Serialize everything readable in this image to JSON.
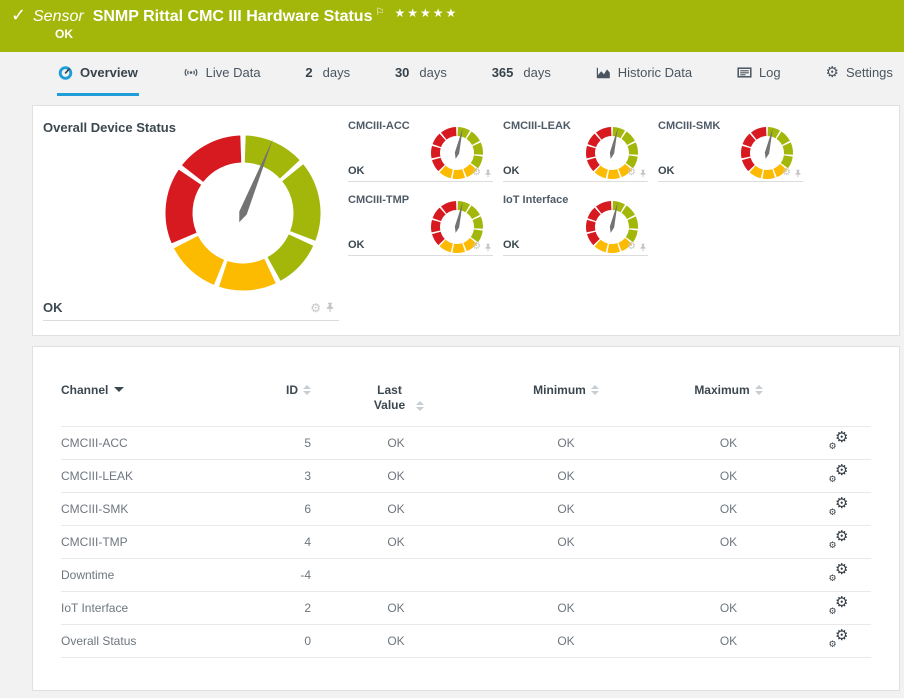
{
  "colors": {
    "header_green": "#a3b70a",
    "accent_blue": "#1e9dd8",
    "gauge_green": "#a3b70a",
    "gauge_yellow": "#fcba00",
    "gauge_red": "#d71920",
    "needle_gray": "#737373"
  },
  "header": {
    "check": "✓",
    "kind": "Sensor",
    "title": "SNMP Rittal CMC III Hardware Status",
    "flag": "⚐",
    "stars": "★★★★★",
    "status": "OK"
  },
  "tabs": [
    {
      "label": "Overview",
      "active": true
    },
    {
      "label": "Live Data"
    },
    {
      "num": "2",
      "label": "days"
    },
    {
      "num": "30",
      "label": "days"
    },
    {
      "num": "365",
      "label": "days"
    },
    {
      "label": "Historic Data"
    },
    {
      "label": "Log"
    },
    {
      "label": "Settings"
    }
  ],
  "overview": {
    "main": {
      "title": "Overall Device Status",
      "status": "OK"
    },
    "minis": [
      {
        "title": "CMCIII-ACC",
        "status": "OK"
      },
      {
        "title": "CMCIII-LEAK",
        "status": "OK"
      },
      {
        "title": "CMCIII-SMK",
        "status": "OK"
      },
      {
        "title": "CMCIII-TMP",
        "status": "OK"
      },
      {
        "title": "IoT Interface",
        "status": "OK"
      }
    ]
  },
  "gauges": {
    "big": {
      "size": 164,
      "r": 64,
      "thickness": 27,
      "needle_deg": 22,
      "needle_len": 80,
      "needle_w": 4,
      "tail": 10,
      "segments": [
        {
          "c": "green",
          "a0": 2,
          "a1": 47
        },
        {
          "c": "green",
          "a0": 51,
          "a1": 111
        },
        {
          "c": "green",
          "a0": 115,
          "a1": 151
        },
        {
          "c": "yellow",
          "a0": 155,
          "a1": 198
        },
        {
          "c": "yellow",
          "a0": 202,
          "a1": 243
        },
        {
          "c": "red",
          "a0": 247,
          "a1": 304
        },
        {
          "c": "red",
          "a0": 308,
          "a1": 358
        }
      ]
    },
    "mini": {
      "size": 56,
      "r": 21.5,
      "thickness": 9,
      "needle_deg": 13,
      "needle_len": 26,
      "needle_w": 2.2,
      "tail": 6,
      "segments": [
        {
          "c": "green",
          "a0": 2,
          "a1": 30
        },
        {
          "c": "green",
          "a0": 34,
          "a1": 62
        },
        {
          "c": "green",
          "a0": 66,
          "a1": 94
        },
        {
          "c": "green",
          "a0": 98,
          "a1": 126
        },
        {
          "c": "yellow",
          "a0": 130,
          "a1": 158
        },
        {
          "c": "yellow",
          "a0": 162,
          "a1": 190
        },
        {
          "c": "yellow",
          "a0": 194,
          "a1": 222
        },
        {
          "c": "red",
          "a0": 226,
          "a1": 254
        },
        {
          "c": "red",
          "a0": 258,
          "a1": 286
        },
        {
          "c": "red",
          "a0": 290,
          "a1": 318
        },
        {
          "c": "red",
          "a0": 322,
          "a1": 358
        }
      ]
    }
  },
  "table": {
    "columns": [
      {
        "label": "Channel"
      },
      {
        "label": "ID"
      },
      {
        "label": "Last Value"
      },
      {
        "label": "Minimum"
      },
      {
        "label": "Maximum"
      }
    ],
    "rows": [
      {
        "channel": "CMCIII-ACC",
        "id": "5",
        "last": "OK",
        "min": "OK",
        "max": "OK"
      },
      {
        "channel": "CMCIII-LEAK",
        "id": "3",
        "last": "OK",
        "min": "OK",
        "max": "OK"
      },
      {
        "channel": "CMCIII-SMK",
        "id": "6",
        "last": "OK",
        "min": "OK",
        "max": "OK"
      },
      {
        "channel": "CMCIII-TMP",
        "id": "4",
        "last": "OK",
        "min": "OK",
        "max": "OK"
      },
      {
        "channel": "Downtime",
        "id": "-4",
        "last": "",
        "min": "",
        "max": ""
      },
      {
        "channel": "IoT Interface",
        "id": "2",
        "last": "OK",
        "min": "OK",
        "max": "OK"
      },
      {
        "channel": "Overall Status",
        "id": "0",
        "last": "OK",
        "min": "OK",
        "max": "OK"
      }
    ]
  }
}
